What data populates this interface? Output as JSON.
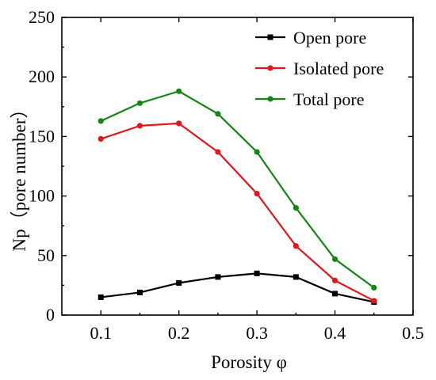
{
  "chart_data": {
    "type": "line",
    "title": "",
    "xlabel": "Porosity φ",
    "ylabel": "Np（pore number）",
    "xlim": [
      0.05,
      0.5
    ],
    "ylim": [
      0,
      250
    ],
    "x_ticks": [
      "0.1",
      "0.2",
      "0.3",
      "0.4",
      "0.5"
    ],
    "y_ticks": [
      "0",
      "50",
      "100",
      "150",
      "200",
      "250"
    ],
    "x": [
      0.1,
      0.15,
      0.2,
      0.25,
      0.3,
      0.35,
      0.4,
      0.45
    ],
    "grid": false,
    "legend_position": "top-right",
    "series": [
      {
        "name": "Open pore",
        "color": "#000000",
        "marker": "square",
        "values": [
          15,
          19,
          27,
          32,
          35,
          32,
          18,
          11
        ]
      },
      {
        "name": "Isolated pore",
        "color": "#e3161b",
        "marker": "circle",
        "values": [
          148,
          159,
          161,
          137,
          102,
          58,
          29,
          12
        ]
      },
      {
        "name": "Total pore",
        "color": "#138613",
        "marker": "circle",
        "values": [
          163,
          178,
          188,
          169,
          137,
          90,
          47,
          23
        ]
      }
    ]
  }
}
